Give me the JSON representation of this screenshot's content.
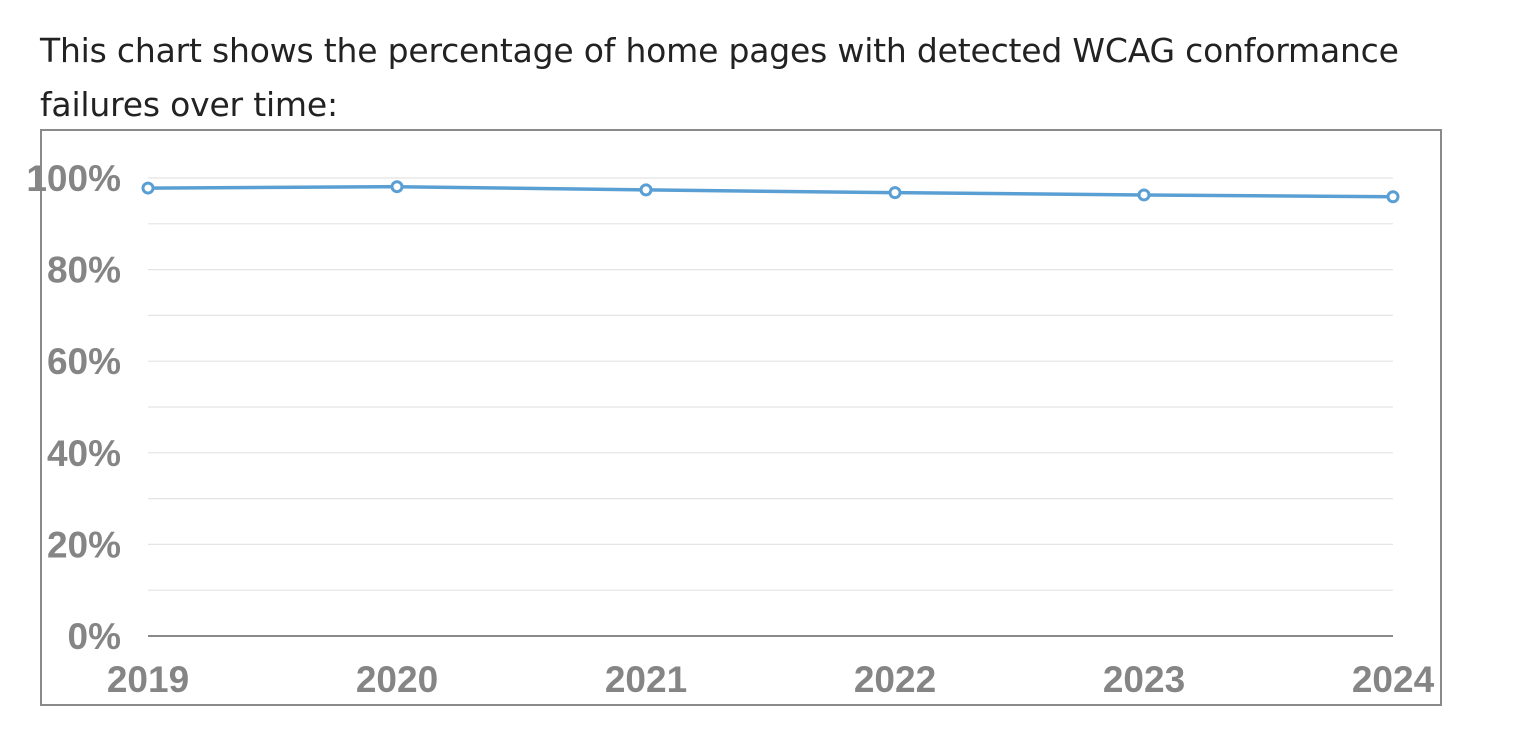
{
  "intro_text": "This chart shows the percentage of home pages with detected WCAG conformance failures over time:",
  "colors": {
    "line": "#5a9fd4",
    "grid": "#e4e4e4",
    "axis": "#8a8a8a",
    "tick_text": "#858585",
    "frame": "#8a8a8a"
  },
  "chart_data": {
    "type": "line",
    "title": "",
    "xlabel": "",
    "ylabel": "",
    "categories": [
      "2019",
      "2020",
      "2021",
      "2022",
      "2023",
      "2024"
    ],
    "y_tick_labels": [
      "0%",
      "20%",
      "40%",
      "60%",
      "80%",
      "100%"
    ],
    "y_ticks": [
      0,
      20,
      40,
      60,
      80,
      100
    ],
    "ylim": [
      0,
      100
    ],
    "grid": true,
    "legend": "none",
    "series": [
      {
        "values": [
          97.8,
          98.1,
          97.4,
          96.8,
          96.3,
          95.9
        ]
      }
    ]
  }
}
